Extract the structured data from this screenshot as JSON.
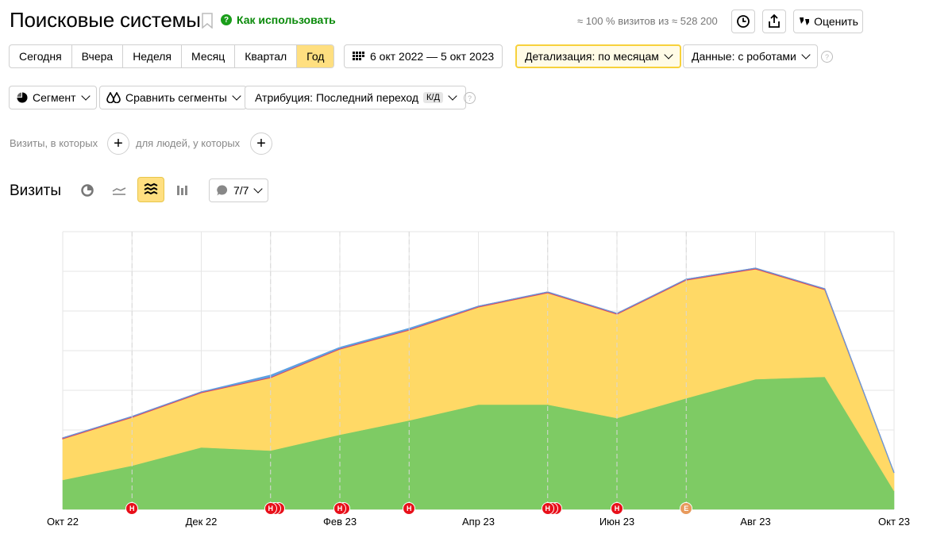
{
  "header": {
    "title": "Поисковые системы",
    "howto_label": "Как использовать",
    "visits_info": "≈ 100 % визитов из ≈ 528 200",
    "rate_label": "Оценить"
  },
  "periods": [
    {
      "label": "Сегодня",
      "active": false
    },
    {
      "label": "Вчера",
      "active": false
    },
    {
      "label": "Неделя",
      "active": false
    },
    {
      "label": "Месяц",
      "active": false
    },
    {
      "label": "Квартал",
      "active": false
    },
    {
      "label": "Год",
      "active": true
    }
  ],
  "date_range": "6 окт 2022 — 5 окт 2023",
  "detail_label": "Детализация: по месяцам",
  "data_label": "Данные: с роботами",
  "segment_label": "Сегмент",
  "compare_label": "Сравнить сегменты",
  "attribution": {
    "label": "Атрибуция: Последний переход",
    "badge": "К/Д"
  },
  "filters": {
    "visits_text": "Визиты, в которых",
    "people_text": "для людей, у которых"
  },
  "chart_section": {
    "title": "Визиты",
    "series_counter": "7/7"
  },
  "colors": {
    "accent": "#ffdf80",
    "green": "#7ecb64",
    "yellow": "#ffd966",
    "marker_red": "#e8101a",
    "marker_orange": "#e89a5c"
  },
  "chart_data": {
    "type": "area",
    "x": [
      "Окт 22",
      "Ноя 22",
      "Дек 22",
      "Янв 23",
      "Фев 23",
      "Мар 23",
      "Апр 23",
      "Май 23",
      "Июн 23",
      "Июл 23",
      "Авг 23",
      "Сен 23",
      "Окт 23"
    ],
    "xticks": [
      "Окт 22",
      "Дек 22",
      "Фев 23",
      "Апр 23",
      "Июн 23",
      "Авг 23",
      "Окт 23"
    ],
    "stacked": true,
    "grid": true,
    "ylim": [
      0,
      7
    ],
    "series": [
      {
        "color": "#7ecb64",
        "values": [
          0.74,
          1.1,
          1.56,
          1.48,
          1.88,
          2.24,
          2.64,
          2.64,
          2.3,
          2.8,
          3.28,
          3.34,
          0.46
        ]
      },
      {
        "color": "#ffd966",
        "values": [
          1.04,
          1.22,
          1.38,
          1.84,
          2.16,
          2.28,
          2.46,
          2.82,
          2.62,
          2.98,
          2.78,
          2.2,
          0.46
        ]
      },
      {
        "color": "#e04060",
        "values": [
          0.02,
          0.02,
          0.02,
          0.02,
          0.02,
          0.02,
          0.02,
          0.02,
          0.02,
          0.02,
          0.02,
          0.02,
          0.0
        ]
      },
      {
        "color": "#5ea0e0",
        "values": [
          0.0,
          0.0,
          0.0,
          0.04,
          0.02,
          0.02,
          0.0,
          0.0,
          0.0,
          0.0,
          0.0,
          0.0,
          0.0
        ]
      }
    ],
    "annotations": [
      {
        "x": "Ноя 22",
        "letter": "Н",
        "count": 1,
        "color": "#e8101a"
      },
      {
        "x": "Янв 23",
        "letter": "Н",
        "count": 3,
        "color": "#e8101a"
      },
      {
        "x": "Фев 23",
        "letter": "Н",
        "count": 2,
        "color": "#e8101a"
      },
      {
        "x": "Мар 23",
        "letter": "Н",
        "count": 1,
        "color": "#e8101a"
      },
      {
        "x": "Май 23",
        "letter": "Н",
        "count": 3,
        "color": "#e8101a"
      },
      {
        "x": "Июн 23",
        "letter": "Н",
        "count": 1,
        "color": "#e8101a"
      },
      {
        "x": "Июл 23",
        "letter": "Е",
        "count": 1,
        "color": "#e89a5c"
      }
    ]
  }
}
